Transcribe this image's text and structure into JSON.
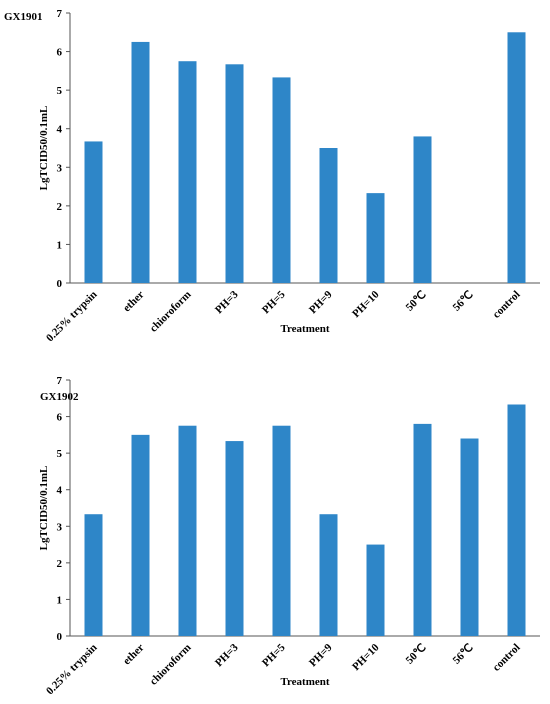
{
  "chart_data": [
    {
      "type": "bar",
      "label": "GX1901",
      "ylabel": "LgTCID50/0.1mL",
      "xlabel": "Treatment",
      "categories": [
        "0.25% trypsin",
        "ether",
        "chioroform",
        "PH=3",
        "PH=5",
        "PH=9",
        "PH=10",
        "50℃",
        "56℃",
        "control"
      ],
      "values": [
        3.67,
        6.25,
        5.75,
        5.67,
        5.33,
        3.5,
        2.33,
        3.8,
        0,
        6.5
      ],
      "color": "#2e86c8",
      "ylim": [
        0,
        7
      ],
      "yticks": [
        0,
        1,
        2,
        3,
        4,
        5,
        6,
        7
      ]
    },
    {
      "type": "bar",
      "label": "GX1902",
      "ylabel": "LgTCID50/0.1mL",
      "xlabel": "Treatment",
      "categories": [
        "0.25% trypsin",
        "ether",
        "chioroform",
        "PH=3",
        "PH=5",
        "PH=9",
        "PH=10",
        "50℃",
        "56℃",
        "control"
      ],
      "values": [
        3.33,
        5.5,
        5.75,
        5.33,
        5.75,
        3.33,
        2.5,
        5.8,
        5.4,
        6.33
      ],
      "color": "#2e86c8",
      "ylim": [
        0,
        7
      ],
      "yticks": [
        0,
        1,
        2,
        3,
        4,
        5,
        6,
        7
      ]
    }
  ]
}
